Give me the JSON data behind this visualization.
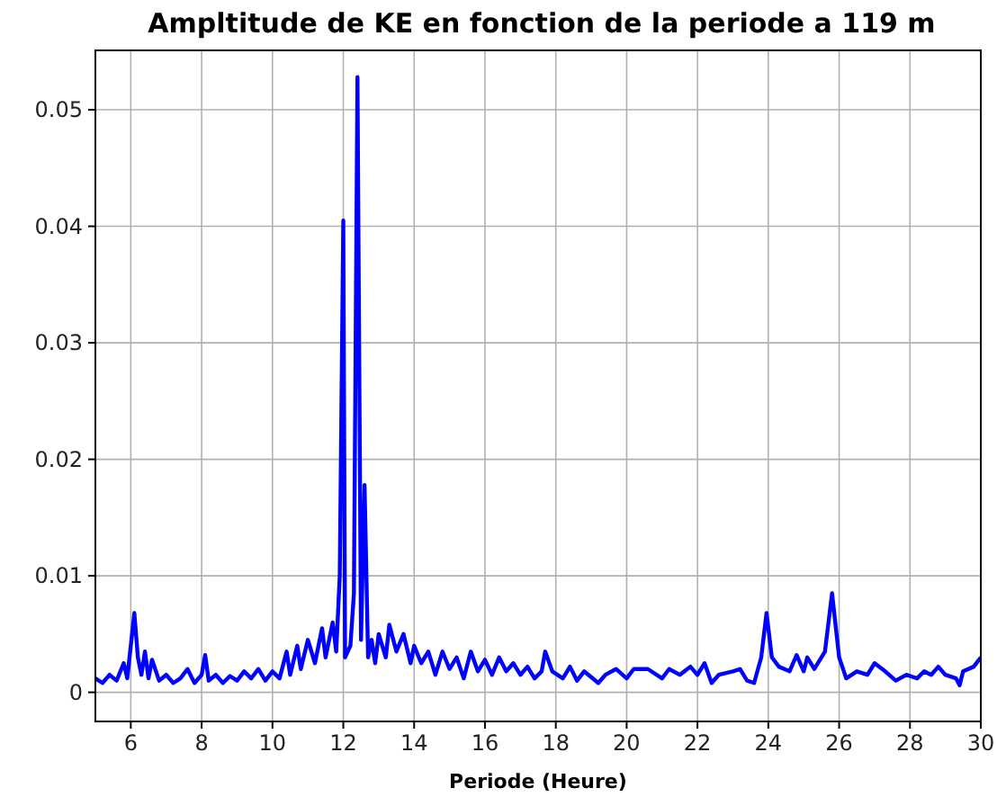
{
  "chart_data": {
    "type": "line",
    "title": "Ampltitude de KE en fonction de la periode a 119 m",
    "xlabel": "Periode (Heure)",
    "xlim": [
      5,
      30
    ],
    "xticks": [
      6,
      8,
      10,
      12,
      14,
      16,
      18,
      20,
      22,
      24,
      26,
      28,
      30
    ],
    "ylim": [
      -0.0025,
      0.0551
    ],
    "yticks": [
      0,
      0.01,
      0.02,
      0.03,
      0.04,
      0.05
    ],
    "grid": true,
    "series": [
      {
        "color": "#0000ff",
        "x": [
          5.0,
          5.2,
          5.4,
          5.6,
          5.8,
          5.9,
          6.0,
          6.1,
          6.2,
          6.3,
          6.4,
          6.5,
          6.6,
          6.8,
          7.0,
          7.2,
          7.4,
          7.6,
          7.8,
          8.0,
          8.1,
          8.2,
          8.4,
          8.6,
          8.8,
          9.0,
          9.2,
          9.4,
          9.6,
          9.8,
          10.0,
          10.2,
          10.4,
          10.5,
          10.7,
          10.8,
          11.0,
          11.2,
          11.4,
          11.5,
          11.7,
          11.8,
          11.9,
          12.0,
          12.05,
          12.2,
          12.3,
          12.4,
          12.5,
          12.6,
          12.7,
          12.8,
          12.9,
          13.0,
          13.2,
          13.3,
          13.5,
          13.7,
          13.9,
          14.0,
          14.2,
          14.4,
          14.6,
          14.8,
          15.0,
          15.2,
          15.4,
          15.6,
          15.8,
          16.0,
          16.2,
          16.4,
          16.6,
          16.8,
          17.0,
          17.2,
          17.4,
          17.6,
          17.7,
          17.9,
          18.2,
          18.4,
          18.6,
          18.8,
          19.2,
          19.4,
          19.7,
          20.0,
          20.2,
          20.6,
          21.0,
          21.2,
          21.5,
          21.8,
          22.0,
          22.2,
          22.4,
          22.6,
          23.0,
          23.2,
          23.4,
          23.6,
          23.8,
          23.95,
          24.1,
          24.3,
          24.6,
          24.8,
          25.0,
          25.1,
          25.3,
          25.6,
          25.8,
          26.0,
          26.2,
          26.5,
          26.8,
          27.0,
          27.3,
          27.6,
          27.9,
          28.2,
          28.4,
          28.6,
          28.8,
          29.0,
          29.3,
          29.4,
          29.5,
          29.8,
          30.0
        ],
        "values": [
          0.0012,
          0.0008,
          0.0015,
          0.001,
          0.0025,
          0.0012,
          0.004,
          0.0068,
          0.003,
          0.0015,
          0.0035,
          0.0012,
          0.0028,
          0.001,
          0.0015,
          0.0008,
          0.0012,
          0.002,
          0.0008,
          0.0015,
          0.0032,
          0.001,
          0.0015,
          0.0008,
          0.0014,
          0.001,
          0.0018,
          0.0012,
          0.002,
          0.001,
          0.0018,
          0.0012,
          0.0035,
          0.0015,
          0.004,
          0.002,
          0.0045,
          0.0025,
          0.0055,
          0.003,
          0.006,
          0.0035,
          0.01,
          0.0405,
          0.003,
          0.004,
          0.0085,
          0.0528,
          0.0045,
          0.0178,
          0.003,
          0.0045,
          0.0025,
          0.005,
          0.003,
          0.0058,
          0.0035,
          0.005,
          0.0025,
          0.004,
          0.0025,
          0.0035,
          0.0015,
          0.0035,
          0.002,
          0.003,
          0.0012,
          0.0035,
          0.0018,
          0.0028,
          0.0015,
          0.003,
          0.0018,
          0.0025,
          0.0015,
          0.0022,
          0.0012,
          0.0018,
          0.0035,
          0.0018,
          0.0012,
          0.0022,
          0.001,
          0.0018,
          0.0008,
          0.0015,
          0.002,
          0.0012,
          0.002,
          0.002,
          0.0012,
          0.002,
          0.0015,
          0.0022,
          0.0015,
          0.0025,
          0.0008,
          0.0015,
          0.0018,
          0.002,
          0.001,
          0.0008,
          0.003,
          0.0068,
          0.003,
          0.0022,
          0.0018,
          0.0032,
          0.0018,
          0.003,
          0.002,
          0.0035,
          0.0085,
          0.003,
          0.0012,
          0.0018,
          0.0015,
          0.0025,
          0.0018,
          0.001,
          0.0015,
          0.0012,
          0.0018,
          0.0015,
          0.0022,
          0.0015,
          0.0012,
          0.0006,
          0.0018,
          0.0022,
          0.003
        ]
      }
    ]
  }
}
